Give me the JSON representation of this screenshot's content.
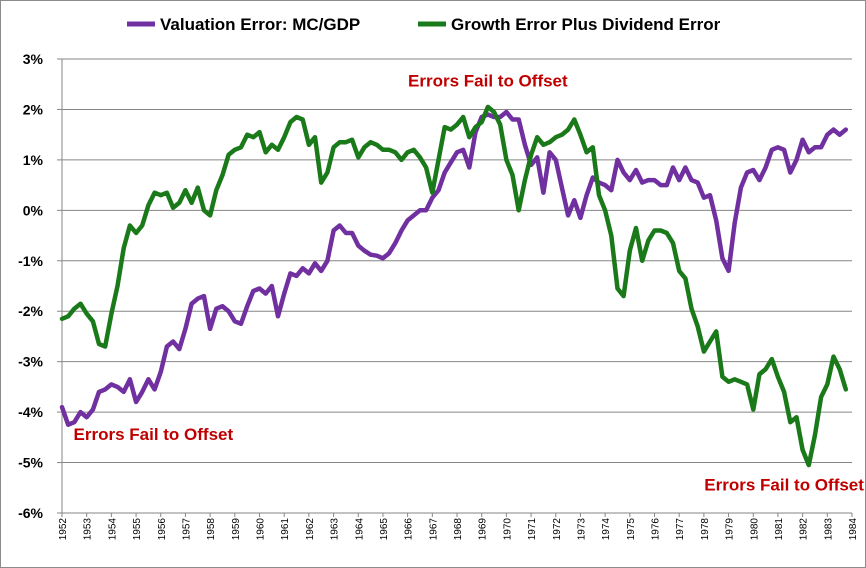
{
  "chart_data": {
    "type": "line",
    "ylim": [
      -6,
      3
    ],
    "y_ticks": [
      {
        "value": 3,
        "label": "3%"
      },
      {
        "value": 2,
        "label": "2%"
      },
      {
        "value": 1,
        "label": "1%"
      },
      {
        "value": 0,
        "label": "0%"
      },
      {
        "value": -1,
        "label": "-1%"
      },
      {
        "value": -2,
        "label": "-2%"
      },
      {
        "value": -3,
        "label": "-3%"
      },
      {
        "value": -4,
        "label": "-4%"
      },
      {
        "value": -5,
        "label": "-5%"
      },
      {
        "value": -6,
        "label": "-6%"
      }
    ],
    "x_ticks": [
      "1952",
      "1953",
      "1954",
      "1955",
      "1956",
      "1957",
      "1958",
      "1959",
      "1960",
      "1961",
      "1962",
      "1963",
      "1964",
      "1965",
      "1966",
      "1967",
      "1968",
      "1969",
      "1970",
      "1971",
      "1972",
      "1973",
      "1974",
      "1975",
      "1976",
      "1977",
      "1978",
      "1979",
      "1980",
      "1981",
      "1982",
      "1983",
      "1984"
    ],
    "xlim": [
      1952,
      1984
    ],
    "grid": "horizontal",
    "legend_position": "top",
    "series": [
      {
        "name": "Valuation Error: MC/GDP",
        "color": "#7030a0",
        "points": [
          [
            1952.0,
            -3.9
          ],
          [
            1952.25,
            -4.25
          ],
          [
            1952.5,
            -4.2
          ],
          [
            1952.75,
            -4.0
          ],
          [
            1953.0,
            -4.1
          ],
          [
            1953.25,
            -3.95
          ],
          [
            1953.5,
            -3.6
          ],
          [
            1953.75,
            -3.55
          ],
          [
            1954.0,
            -3.45
          ],
          [
            1954.25,
            -3.5
          ],
          [
            1954.5,
            -3.6
          ],
          [
            1954.75,
            -3.35
          ],
          [
            1955.0,
            -3.8
          ],
          [
            1955.25,
            -3.6
          ],
          [
            1955.5,
            -3.35
          ],
          [
            1955.75,
            -3.55
          ],
          [
            1956.0,
            -3.2
          ],
          [
            1956.25,
            -2.7
          ],
          [
            1956.5,
            -2.6
          ],
          [
            1956.75,
            -2.75
          ],
          [
            1957.0,
            -2.35
          ],
          [
            1957.25,
            -1.85
          ],
          [
            1957.5,
            -1.75
          ],
          [
            1957.75,
            -1.7
          ],
          [
            1958.0,
            -2.35
          ],
          [
            1958.25,
            -1.95
          ],
          [
            1958.5,
            -1.9
          ],
          [
            1958.75,
            -2.0
          ],
          [
            1959.0,
            -2.2
          ],
          [
            1959.25,
            -2.25
          ],
          [
            1959.5,
            -1.9
          ],
          [
            1959.75,
            -1.6
          ],
          [
            1960.0,
            -1.55
          ],
          [
            1960.25,
            -1.65
          ],
          [
            1960.5,
            -1.5
          ],
          [
            1960.75,
            -2.1
          ],
          [
            1961.0,
            -1.65
          ],
          [
            1961.25,
            -1.25
          ],
          [
            1961.5,
            -1.3
          ],
          [
            1961.75,
            -1.15
          ],
          [
            1962.0,
            -1.25
          ],
          [
            1962.25,
            -1.05
          ],
          [
            1962.5,
            -1.2
          ],
          [
            1962.75,
            -1.0
          ],
          [
            1963.0,
            -0.4
          ],
          [
            1963.25,
            -0.3
          ],
          [
            1963.5,
            -0.45
          ],
          [
            1963.75,
            -0.45
          ],
          [
            1964.0,
            -0.7
          ],
          [
            1964.25,
            -0.8
          ],
          [
            1964.5,
            -0.88
          ],
          [
            1964.75,
            -0.9
          ],
          [
            1965.0,
            -0.95
          ],
          [
            1965.25,
            -0.85
          ],
          [
            1965.5,
            -0.65
          ],
          [
            1965.75,
            -0.4
          ],
          [
            1966.0,
            -0.2
          ],
          [
            1966.25,
            -0.1
          ],
          [
            1966.5,
            0.0
          ],
          [
            1966.75,
            0.0
          ],
          [
            1967.0,
            0.25
          ],
          [
            1967.25,
            0.4
          ],
          [
            1967.5,
            0.75
          ],
          [
            1967.75,
            0.95
          ],
          [
            1968.0,
            1.15
          ],
          [
            1968.25,
            1.2
          ],
          [
            1968.5,
            0.85
          ],
          [
            1968.75,
            1.55
          ],
          [
            1969.0,
            1.85
          ],
          [
            1969.25,
            1.9
          ],
          [
            1969.5,
            1.85
          ],
          [
            1969.75,
            1.85
          ],
          [
            1970.0,
            1.95
          ],
          [
            1970.25,
            1.8
          ],
          [
            1970.5,
            1.8
          ],
          [
            1970.75,
            1.3
          ],
          [
            1971.0,
            0.9
          ],
          [
            1971.25,
            1.05
          ],
          [
            1971.5,
            0.35
          ],
          [
            1971.75,
            1.15
          ],
          [
            1972.0,
            1.0
          ],
          [
            1972.25,
            0.45
          ],
          [
            1972.5,
            -0.1
          ],
          [
            1972.75,
            0.2
          ],
          [
            1973.0,
            -0.15
          ],
          [
            1973.25,
            0.3
          ],
          [
            1973.5,
            0.65
          ],
          [
            1973.75,
            0.55
          ],
          [
            1974.0,
            0.5
          ],
          [
            1974.25,
            0.4
          ],
          [
            1974.5,
            1.0
          ],
          [
            1974.75,
            0.75
          ],
          [
            1975.0,
            0.6
          ],
          [
            1975.25,
            0.8
          ],
          [
            1975.5,
            0.55
          ],
          [
            1975.75,
            0.6
          ],
          [
            1976.0,
            0.6
          ],
          [
            1976.25,
            0.5
          ],
          [
            1976.5,
            0.5
          ],
          [
            1976.75,
            0.85
          ],
          [
            1977.0,
            0.6
          ],
          [
            1977.25,
            0.85
          ],
          [
            1977.5,
            0.6
          ],
          [
            1977.75,
            0.55
          ],
          [
            1978.0,
            0.25
          ],
          [
            1978.25,
            0.3
          ],
          [
            1978.5,
            -0.2
          ],
          [
            1978.75,
            -0.95
          ],
          [
            1979.0,
            -1.2
          ],
          [
            1979.25,
            -0.25
          ],
          [
            1979.5,
            0.45
          ],
          [
            1979.75,
            0.75
          ],
          [
            1980.0,
            0.8
          ],
          [
            1980.25,
            0.6
          ],
          [
            1980.5,
            0.85
          ],
          [
            1980.75,
            1.2
          ],
          [
            1981.0,
            1.25
          ],
          [
            1981.25,
            1.2
          ],
          [
            1981.5,
            0.75
          ],
          [
            1981.75,
            1.0
          ],
          [
            1982.0,
            1.4
          ],
          [
            1982.25,
            1.15
          ],
          [
            1982.5,
            1.25
          ],
          [
            1982.75,
            1.25
          ],
          [
            1983.0,
            1.5
          ],
          [
            1983.25,
            1.6
          ],
          [
            1983.5,
            1.5
          ],
          [
            1983.75,
            1.6
          ]
        ]
      },
      {
        "name": "Growth Error Plus Dividend Error",
        "color": "#1a7a1a",
        "points": [
          [
            1952.0,
            -2.15
          ],
          [
            1952.25,
            -2.1
          ],
          [
            1952.5,
            -1.95
          ],
          [
            1952.75,
            -1.85
          ],
          [
            1953.0,
            -2.05
          ],
          [
            1953.25,
            -2.2
          ],
          [
            1953.5,
            -2.65
          ],
          [
            1953.75,
            -2.7
          ],
          [
            1954.0,
            -2.05
          ],
          [
            1954.25,
            -1.5
          ],
          [
            1954.5,
            -0.75
          ],
          [
            1954.75,
            -0.3
          ],
          [
            1955.0,
            -0.45
          ],
          [
            1955.25,
            -0.3
          ],
          [
            1955.5,
            0.1
          ],
          [
            1955.75,
            0.35
          ],
          [
            1956.0,
            0.3
          ],
          [
            1956.25,
            0.35
          ],
          [
            1956.5,
            0.05
          ],
          [
            1956.75,
            0.15
          ],
          [
            1957.0,
            0.4
          ],
          [
            1957.25,
            0.15
          ],
          [
            1957.5,
            0.45
          ],
          [
            1957.75,
            0.0
          ],
          [
            1958.0,
            -0.1
          ],
          [
            1958.25,
            0.4
          ],
          [
            1958.5,
            0.7
          ],
          [
            1958.75,
            1.1
          ],
          [
            1959.0,
            1.2
          ],
          [
            1959.25,
            1.25
          ],
          [
            1959.5,
            1.5
          ],
          [
            1959.75,
            1.45
          ],
          [
            1960.0,
            1.55
          ],
          [
            1960.25,
            1.15
          ],
          [
            1960.5,
            1.3
          ],
          [
            1960.75,
            1.2
          ],
          [
            1961.0,
            1.45
          ],
          [
            1961.25,
            1.75
          ],
          [
            1961.5,
            1.85
          ],
          [
            1961.75,
            1.8
          ],
          [
            1962.0,
            1.3
          ],
          [
            1962.25,
            1.45
          ],
          [
            1962.5,
            0.55
          ],
          [
            1962.75,
            0.75
          ],
          [
            1963.0,
            1.25
          ],
          [
            1963.25,
            1.35
          ],
          [
            1963.5,
            1.35
          ],
          [
            1963.75,
            1.4
          ],
          [
            1964.0,
            1.05
          ],
          [
            1964.25,
            1.25
          ],
          [
            1964.5,
            1.35
          ],
          [
            1964.75,
            1.3
          ],
          [
            1965.0,
            1.2
          ],
          [
            1965.25,
            1.2
          ],
          [
            1965.5,
            1.15
          ],
          [
            1965.75,
            1.0
          ],
          [
            1966.0,
            1.15
          ],
          [
            1966.25,
            1.2
          ],
          [
            1966.5,
            1.05
          ],
          [
            1966.75,
            0.85
          ],
          [
            1967.0,
            0.35
          ],
          [
            1967.25,
            1.0
          ],
          [
            1967.5,
            1.65
          ],
          [
            1967.75,
            1.6
          ],
          [
            1968.0,
            1.7
          ],
          [
            1968.25,
            1.85
          ],
          [
            1968.5,
            1.45
          ],
          [
            1968.75,
            1.65
          ],
          [
            1969.0,
            1.75
          ],
          [
            1969.25,
            2.05
          ],
          [
            1969.5,
            1.95
          ],
          [
            1969.75,
            1.7
          ],
          [
            1970.0,
            1.0
          ],
          [
            1970.25,
            0.7
          ],
          [
            1970.5,
            0.0
          ],
          [
            1970.75,
            0.6
          ],
          [
            1971.0,
            1.1
          ],
          [
            1971.25,
            1.45
          ],
          [
            1971.5,
            1.3
          ],
          [
            1971.75,
            1.35
          ],
          [
            1972.0,
            1.45
          ],
          [
            1972.25,
            1.5
          ],
          [
            1972.5,
            1.6
          ],
          [
            1972.75,
            1.8
          ],
          [
            1973.0,
            1.5
          ],
          [
            1973.25,
            1.15
          ],
          [
            1973.5,
            1.25
          ],
          [
            1973.75,
            0.3
          ],
          [
            1974.0,
            0.0
          ],
          [
            1974.25,
            -0.5
          ],
          [
            1974.5,
            -1.55
          ],
          [
            1974.75,
            -1.7
          ],
          [
            1975.0,
            -0.8
          ],
          [
            1975.25,
            -0.35
          ],
          [
            1975.5,
            -1.0
          ],
          [
            1975.75,
            -0.6
          ],
          [
            1976.0,
            -0.4
          ],
          [
            1976.25,
            -0.4
          ],
          [
            1976.5,
            -0.45
          ],
          [
            1976.75,
            -0.65
          ],
          [
            1977.0,
            -1.2
          ],
          [
            1977.25,
            -1.35
          ],
          [
            1977.5,
            -1.95
          ],
          [
            1977.75,
            -2.3
          ],
          [
            1978.0,
            -2.8
          ],
          [
            1978.25,
            -2.6
          ],
          [
            1978.5,
            -2.4
          ],
          [
            1978.75,
            -3.3
          ],
          [
            1979.0,
            -3.4
          ],
          [
            1979.25,
            -3.35
          ],
          [
            1979.5,
            -3.4
          ],
          [
            1979.75,
            -3.45
          ],
          [
            1980.0,
            -3.95
          ],
          [
            1980.25,
            -3.25
          ],
          [
            1980.5,
            -3.15
          ],
          [
            1980.75,
            -2.95
          ],
          [
            1981.0,
            -3.3
          ],
          [
            1981.25,
            -3.6
          ],
          [
            1981.5,
            -4.2
          ],
          [
            1981.75,
            -4.1
          ],
          [
            1982.0,
            -4.75
          ],
          [
            1982.25,
            -5.05
          ],
          [
            1982.5,
            -4.45
          ],
          [
            1982.75,
            -3.7
          ],
          [
            1983.0,
            -3.45
          ],
          [
            1983.25,
            -2.9
          ],
          [
            1983.5,
            -3.15
          ],
          [
            1983.75,
            -3.55
          ]
        ]
      }
    ],
    "annotations": [
      {
        "text": "Errors Fail to Offset",
        "x": 1969.25,
        "y": 2.45
      },
      {
        "text": "Errors Fail to Offset",
        "x": 1955.7,
        "y": -4.55
      },
      {
        "text": "Errors Fail to Offset",
        "x": 1981.25,
        "y": -5.55
      }
    ]
  }
}
